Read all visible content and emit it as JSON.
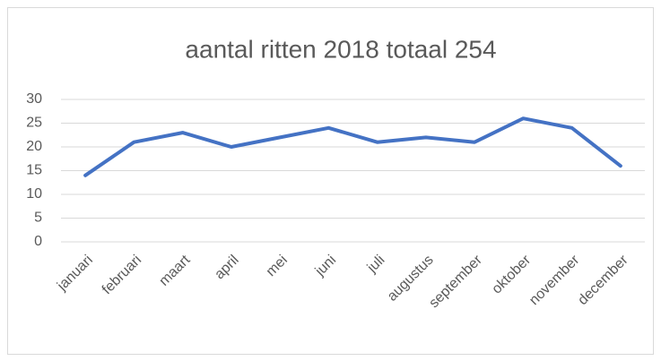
{
  "chart_data": {
    "type": "line",
    "title": "aantal ritten 2018 totaal 254",
    "categories": [
      "januari",
      "februari",
      "maart",
      "april",
      "mei",
      "juni",
      "juli",
      "augustus",
      "september",
      "oktober",
      "november",
      "december"
    ],
    "series": [
      {
        "name": "aantal ritten",
        "color": "#4472c4",
        "values": [
          14,
          21,
          23,
          20,
          22,
          24,
          21,
          22,
          21,
          26,
          24,
          16
        ]
      }
    ],
    "ylim": [
      0,
      30
    ],
    "yticks": [
      0,
      5,
      10,
      15,
      20,
      25,
      30
    ],
    "grid": true
  }
}
